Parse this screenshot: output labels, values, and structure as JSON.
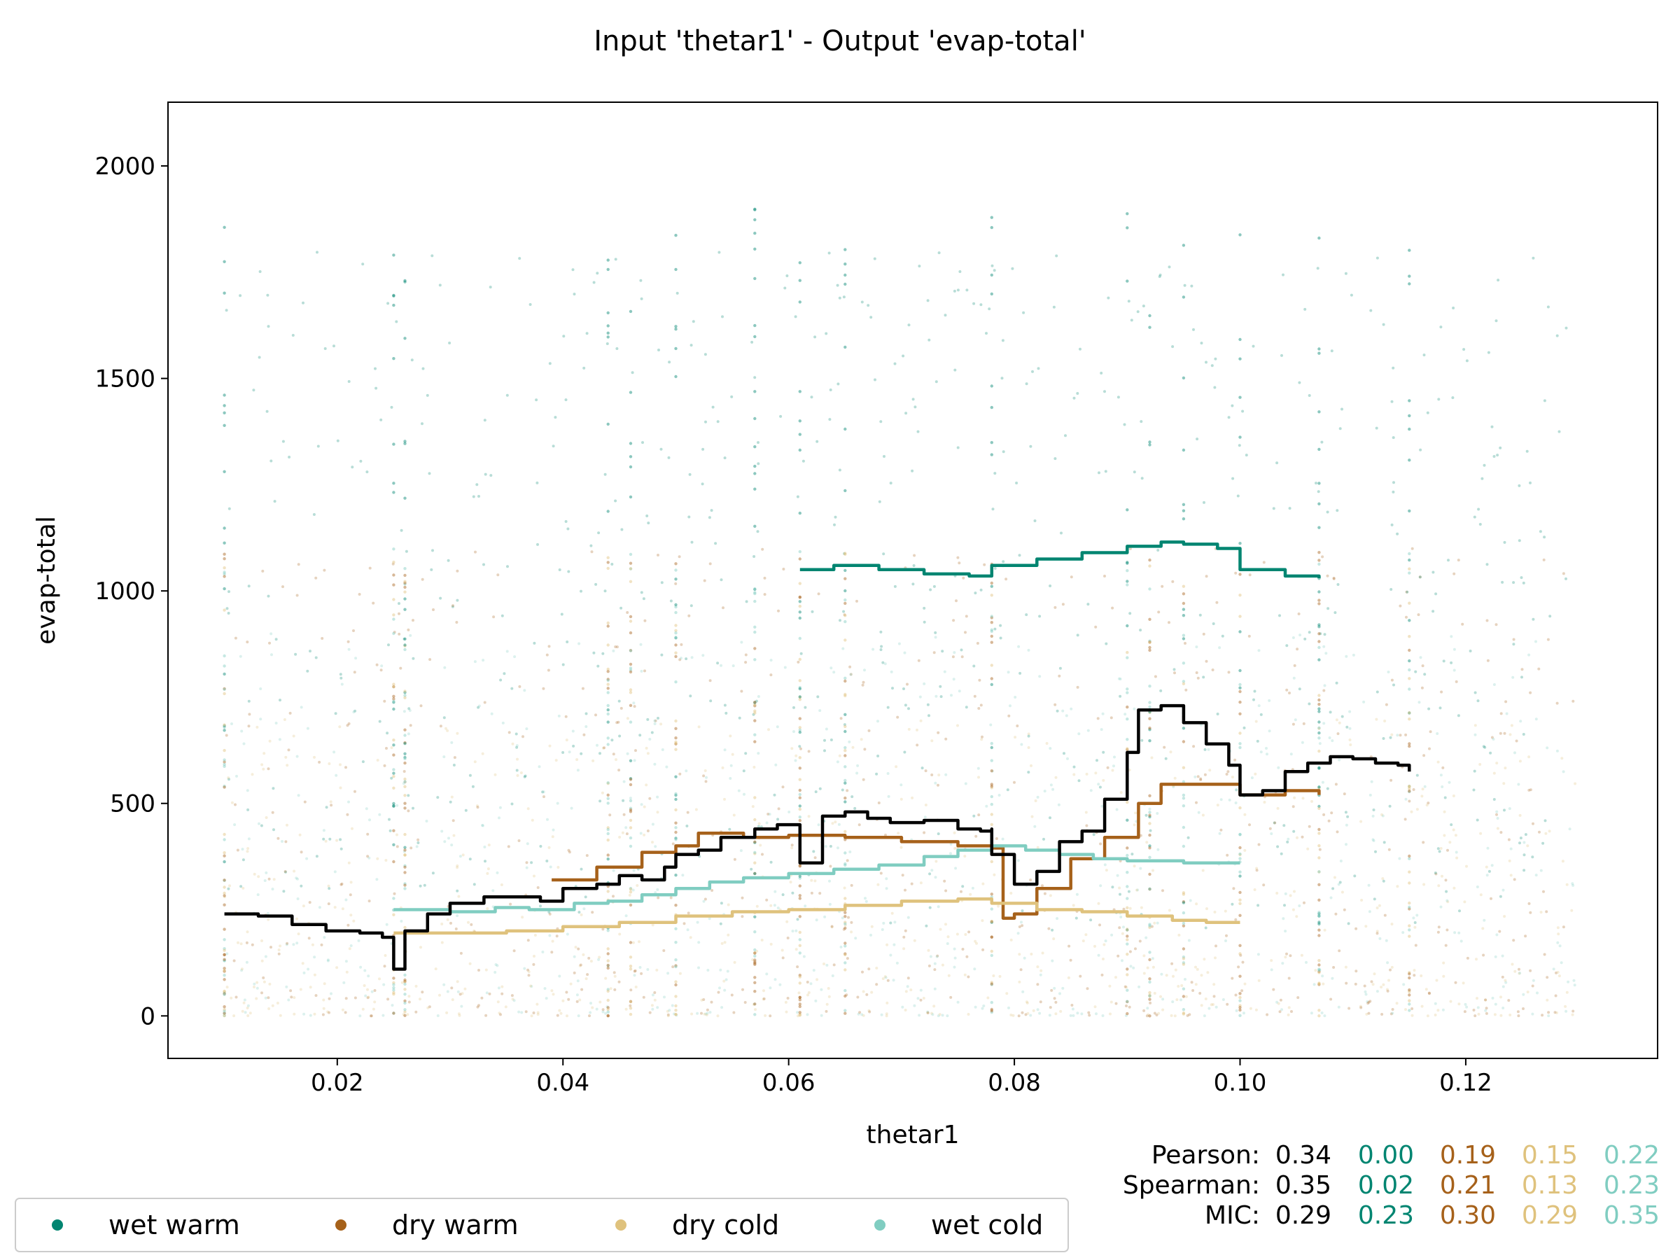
{
  "chart_data": {
    "type": "scatter",
    "title": "Input 'thetar1' - Output 'evap-total'",
    "xlabel": "thetar1",
    "ylabel": "evap-total",
    "xlim": [
      0.005,
      0.137
    ],
    "ylim": [
      -100,
      2150
    ],
    "xticks": [
      0.02,
      0.04,
      0.06,
      0.08,
      0.1,
      0.12
    ],
    "xtick_labels": [
      "0.02",
      "0.04",
      "0.06",
      "0.08",
      "0.10",
      "0.12"
    ],
    "yticks": [
      0,
      500,
      1000,
      1500,
      2000
    ],
    "ytick_labels": [
      "0",
      "500",
      "1000",
      "1500",
      "2000"
    ],
    "grid": false,
    "legend_position": "bottom-left",
    "overall_color": "#000000",
    "series": [
      {
        "name": "wet warm",
        "color": "#018571",
        "trend": [
          [
            0.061,
            1050
          ],
          [
            0.064,
            1060
          ],
          [
            0.068,
            1050
          ],
          [
            0.072,
            1040
          ],
          [
            0.076,
            1035
          ],
          [
            0.078,
            1035
          ],
          [
            0.078,
            1060
          ],
          [
            0.082,
            1075
          ],
          [
            0.086,
            1090
          ],
          [
            0.09,
            1105
          ],
          [
            0.093,
            1115
          ],
          [
            0.095,
            1110
          ],
          [
            0.098,
            1100
          ],
          [
            0.1,
            1095
          ],
          [
            0.1,
            1050
          ],
          [
            0.104,
            1035
          ],
          [
            0.107,
            1030
          ]
        ]
      },
      {
        "name": "dry warm",
        "color": "#a6611a",
        "trend": [
          [
            0.039,
            320
          ],
          [
            0.043,
            350
          ],
          [
            0.047,
            385
          ],
          [
            0.05,
            400
          ],
          [
            0.052,
            430
          ],
          [
            0.056,
            420
          ],
          [
            0.06,
            425
          ],
          [
            0.065,
            420
          ],
          [
            0.07,
            410
          ],
          [
            0.075,
            400
          ],
          [
            0.078,
            395
          ],
          [
            0.079,
            230
          ],
          [
            0.08,
            240
          ],
          [
            0.082,
            300
          ],
          [
            0.085,
            370
          ],
          [
            0.088,
            420
          ],
          [
            0.091,
            500
          ],
          [
            0.093,
            545
          ],
          [
            0.096,
            545
          ],
          [
            0.1,
            545
          ],
          [
            0.1,
            520
          ],
          [
            0.104,
            530
          ],
          [
            0.107,
            520
          ]
        ]
      },
      {
        "name": "dry cold",
        "color": "#dfc27d",
        "trend": [
          [
            0.025,
            195
          ],
          [
            0.03,
            195
          ],
          [
            0.035,
            200
          ],
          [
            0.04,
            210
          ],
          [
            0.045,
            220
          ],
          [
            0.05,
            235
          ],
          [
            0.055,
            245
          ],
          [
            0.06,
            250
          ],
          [
            0.065,
            260
          ],
          [
            0.07,
            270
          ],
          [
            0.075,
            275
          ],
          [
            0.078,
            265
          ],
          [
            0.082,
            250
          ],
          [
            0.086,
            245
          ],
          [
            0.09,
            235
          ],
          [
            0.094,
            225
          ],
          [
            0.097,
            220
          ],
          [
            0.1,
            220
          ]
        ]
      },
      {
        "name": "wet cold",
        "color": "#80cdc1",
        "trend": [
          [
            0.025,
            250
          ],
          [
            0.03,
            245
          ],
          [
            0.034,
            255
          ],
          [
            0.037,
            250
          ],
          [
            0.041,
            265
          ],
          [
            0.044,
            270
          ],
          [
            0.047,
            285
          ],
          [
            0.05,
            300
          ],
          [
            0.053,
            315
          ],
          [
            0.056,
            325
          ],
          [
            0.06,
            335
          ],
          [
            0.064,
            345
          ],
          [
            0.068,
            355
          ],
          [
            0.072,
            375
          ],
          [
            0.075,
            390
          ],
          [
            0.078,
            400
          ],
          [
            0.081,
            390
          ],
          [
            0.084,
            380
          ],
          [
            0.087,
            370
          ],
          [
            0.09,
            365
          ],
          [
            0.095,
            360
          ],
          [
            0.1,
            360
          ]
        ]
      }
    ],
    "overall_trend": [
      [
        0.01,
        240
      ],
      [
        0.013,
        235
      ],
      [
        0.016,
        215
      ],
      [
        0.019,
        200
      ],
      [
        0.022,
        195
      ],
      [
        0.024,
        185
      ],
      [
        0.025,
        170
      ],
      [
        0.025,
        110
      ],
      [
        0.026,
        200
      ],
      [
        0.028,
        240
      ],
      [
        0.03,
        265
      ],
      [
        0.033,
        280
      ],
      [
        0.036,
        280
      ],
      [
        0.038,
        270
      ],
      [
        0.04,
        300
      ],
      [
        0.043,
        310
      ],
      [
        0.045,
        330
      ],
      [
        0.047,
        320
      ],
      [
        0.049,
        350
      ],
      [
        0.05,
        380
      ],
      [
        0.052,
        390
      ],
      [
        0.054,
        420
      ],
      [
        0.057,
        440
      ],
      [
        0.059,
        450
      ],
      [
        0.061,
        360
      ],
      [
        0.063,
        470
      ],
      [
        0.065,
        480
      ],
      [
        0.067,
        465
      ],
      [
        0.069,
        455
      ],
      [
        0.072,
        460
      ],
      [
        0.075,
        440
      ],
      [
        0.077,
        435
      ],
      [
        0.078,
        440
      ],
      [
        0.078,
        380
      ],
      [
        0.08,
        310
      ],
      [
        0.082,
        340
      ],
      [
        0.084,
        410
      ],
      [
        0.086,
        435
      ],
      [
        0.088,
        510
      ],
      [
        0.09,
        620
      ],
      [
        0.091,
        720
      ],
      [
        0.093,
        730
      ],
      [
        0.095,
        690
      ],
      [
        0.097,
        640
      ],
      [
        0.099,
        590
      ],
      [
        0.1,
        520
      ],
      [
        0.102,
        530
      ],
      [
        0.104,
        575
      ],
      [
        0.106,
        595
      ],
      [
        0.108,
        610
      ],
      [
        0.11,
        605
      ],
      [
        0.112,
        595
      ],
      [
        0.114,
        590
      ],
      [
        0.115,
        575
      ]
    ],
    "stats": {
      "rows": [
        {
          "label": "Pearson:",
          "values": [
            "0.34",
            "0.00",
            "0.19",
            "0.15",
            "0.22"
          ]
        },
        {
          "label": "Spearman:",
          "values": [
            "0.35",
            "0.02",
            "0.21",
            "0.13",
            "0.23"
          ]
        },
        {
          "label": "MIC:",
          "values": [
            "0.29",
            "0.23",
            "0.30",
            "0.29",
            "0.35"
          ]
        }
      ],
      "colors": [
        "#000000",
        "#018571",
        "#a6611a",
        "#dfc27d",
        "#80cdc1"
      ]
    }
  }
}
